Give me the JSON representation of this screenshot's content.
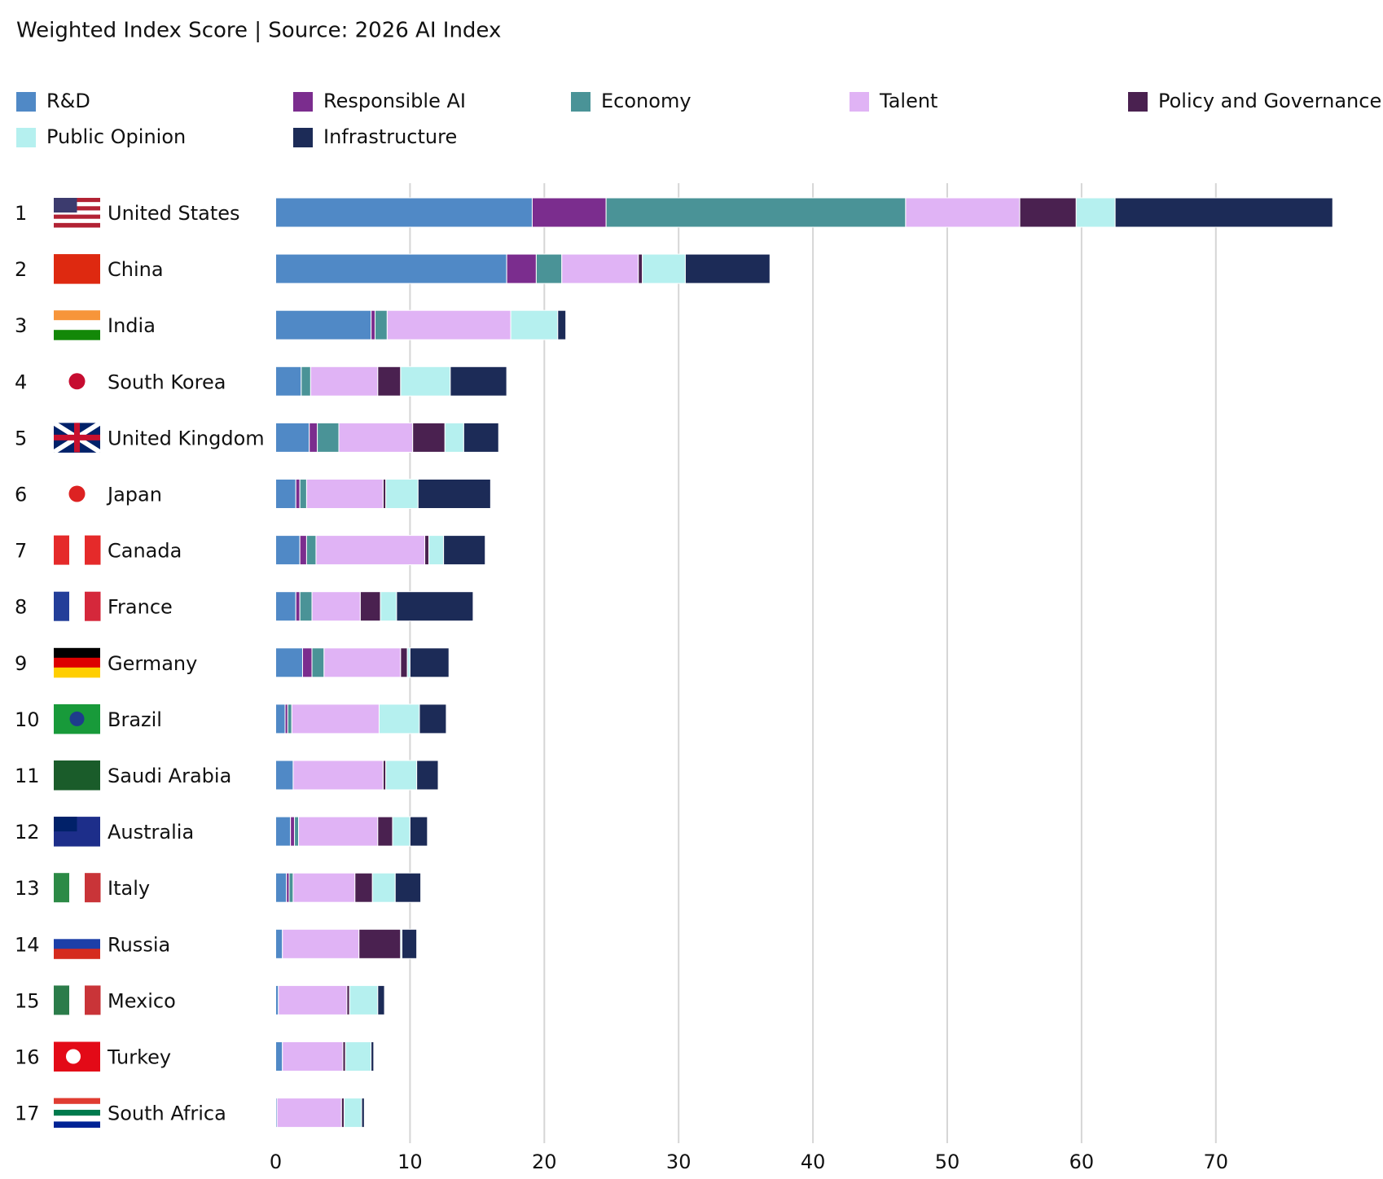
{
  "chart_data": {
    "type": "stacked-bar-horizontal",
    "title": "Weighted Index Score | Source: 2026 AI Index",
    "ranks": [
      1,
      2,
      3,
      4,
      5,
      6,
      7,
      8,
      9,
      10,
      11,
      12,
      13,
      14,
      15,
      16,
      17
    ],
    "categories": [
      "United States",
      "China",
      "India",
      "South Korea",
      "United Kingdom",
      "Japan",
      "Canada",
      "France",
      "Germany",
      "Brazil",
      "Saudi Arabia",
      "Australia",
      "Italy",
      "Russia",
      "Mexico",
      "Turkey",
      "South Africa"
    ],
    "series": [
      {
        "name": "R&D",
        "color": "#5089c6",
        "values": [
          19.1,
          17.2,
          7.1,
          1.9,
          2.5,
          1.5,
          1.8,
          1.5,
          2.0,
          0.7,
          1.3,
          1.1,
          0.8,
          0.5,
          0.2,
          0.5,
          0.1
        ]
      },
      {
        "name": "Responsible AI",
        "color": "#7b2d8e",
        "values": [
          5.5,
          2.2,
          0.3,
          0,
          0.6,
          0.3,
          0.5,
          0.3,
          0.7,
          0.2,
          0,
          0.3,
          0.2,
          0,
          0,
          0,
          0
        ]
      },
      {
        "name": "Economy",
        "color": "#4a9397",
        "values": [
          22.3,
          1.9,
          0.9,
          0.7,
          1.6,
          0.5,
          0.7,
          0.9,
          0.9,
          0.3,
          0,
          0.3,
          0.3,
          0,
          0,
          0,
          0
        ]
      },
      {
        "name": "Talent",
        "color": "#e0b3f5",
        "values": [
          8.5,
          5.7,
          9.2,
          5.0,
          5.5,
          5.7,
          8.1,
          3.6,
          5.7,
          6.5,
          6.7,
          5.9,
          4.6,
          5.7,
          5.1,
          4.5,
          4.8
        ]
      },
      {
        "name": "Policy and Governance",
        "color": "#4a2150",
        "values": [
          4.2,
          0.3,
          0,
          1.7,
          2.4,
          0.2,
          0.3,
          1.5,
          0.5,
          0,
          0.2,
          1.1,
          1.3,
          3.1,
          0.2,
          0.2,
          0.2
        ]
      },
      {
        "name": "Public Opinion",
        "color": "#b5f0ef",
        "values": [
          2.9,
          3.2,
          3.5,
          3.7,
          1.4,
          2.4,
          1.1,
          1.2,
          0.2,
          3.0,
          2.3,
          1.3,
          1.7,
          0.1,
          2.1,
          1.9,
          1.3
        ]
      },
      {
        "name": "Infrastructure",
        "color": "#1c2b57",
        "values": [
          16.2,
          6.3,
          0.6,
          4.2,
          2.6,
          5.4,
          3.1,
          5.7,
          2.9,
          2.0,
          1.6,
          1.3,
          1.9,
          1.1,
          0.5,
          0.2,
          0.2
        ]
      }
    ],
    "xlim": [
      0,
      80
    ],
    "xticks": [
      0,
      10,
      20,
      30,
      40,
      50,
      60,
      70
    ],
    "grid": true
  }
}
